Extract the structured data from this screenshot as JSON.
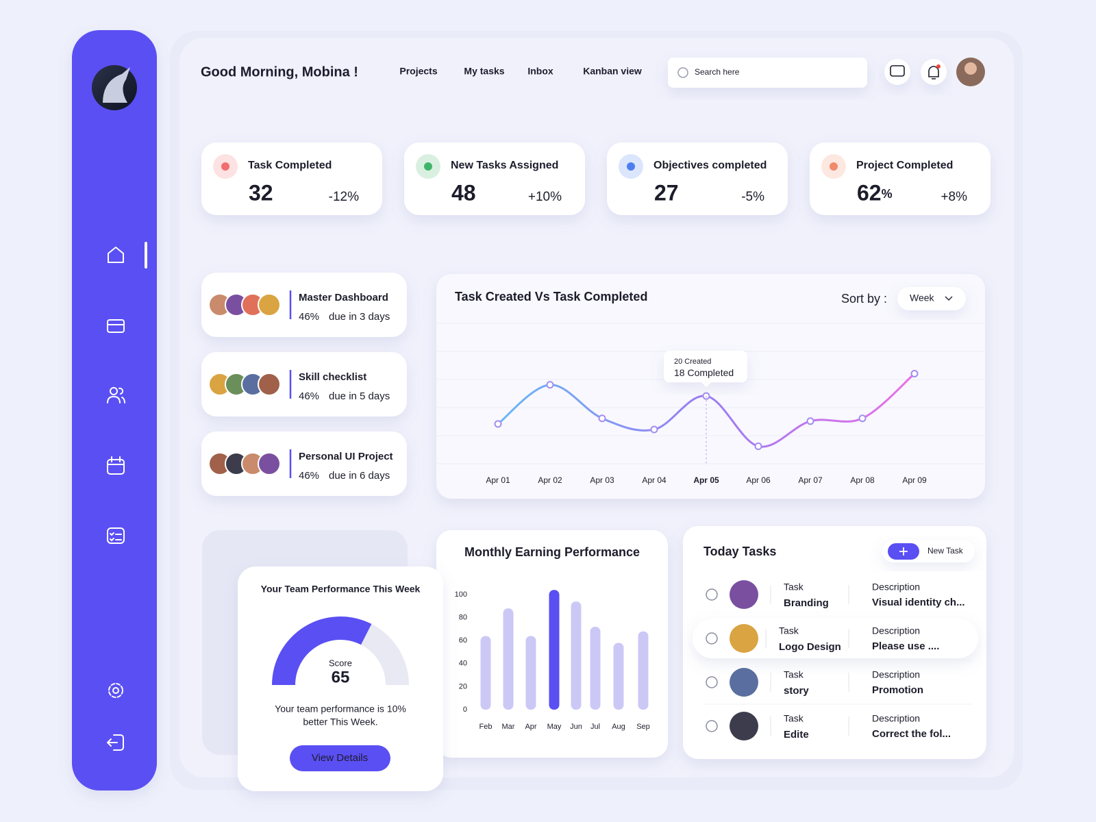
{
  "header": {
    "greeting": "Good Morning, Mobina !",
    "nav": [
      "Projects",
      "My tasks",
      "Inbox",
      "Kanban view"
    ],
    "search_placeholder": "Search here"
  },
  "stats": [
    {
      "title": "Task Completed",
      "value": 32,
      "change": "-12%",
      "color": "#f26d6d"
    },
    {
      "title": "New Tasks Assigned",
      "value": 48,
      "change": "+10%",
      "color": "#3fb56b"
    },
    {
      "title": "Objectives completed",
      "value": 27,
      "change": "-5%",
      "color": "#4d7ef0"
    },
    {
      "title": "Project Completed",
      "value": 62,
      "unit": "%",
      "change": "+8%",
      "color": "#f08a6a"
    }
  ],
  "projects": [
    {
      "name": "Master Dashboard",
      "progress": "46%",
      "due": "due in 3 days"
    },
    {
      "name": "Skill checklist",
      "progress": "46%",
      "due": "due in 5 days"
    },
    {
      "name": "Personal UI Project",
      "progress": "46%",
      "due": "due in 6 days"
    }
  ],
  "chart_data": [
    {
      "type": "line",
      "title": "Task Created Vs Task Completed",
      "sort_label": "Sort by :",
      "sort_value": "Week",
      "categories": [
        "Apr 01",
        "Apr 02",
        "Apr 03",
        "Apr 04",
        "Apr 05",
        "Apr 06",
        "Apr 07",
        "Apr 08",
        "Apr 09"
      ],
      "values": [
        13,
        20,
        14,
        12,
        18,
        9,
        13.5,
        14,
        22
      ],
      "ylim": [
        6,
        31
      ],
      "active": "Apr 05",
      "tooltip": {
        "created": "20 Created",
        "completed": "18 Completed"
      },
      "colors": [
        "#6ab8f4",
        "#9a7cf2",
        "#ea6fe6"
      ]
    },
    {
      "type": "bar",
      "title": "Monthly Earning Performance",
      "categories": [
        "Feb",
        "Mar",
        "Apr",
        "May",
        "Jun",
        "Jul",
        "Aug",
        "Sep"
      ],
      "values": [
        64,
        88,
        64,
        104,
        94,
        72,
        58,
        68
      ],
      "ylim": [
        0,
        110
      ],
      "yticks": [
        0,
        20,
        40,
        60,
        80,
        100
      ],
      "color": "#cbc8f6",
      "highlight": "May",
      "highlight_color": "#5a4ff3"
    },
    {
      "type": "gauge",
      "title": "Your Team Performance This Week",
      "label": "Score",
      "value": 65,
      "range": [
        0,
        100
      ],
      "note": [
        "Your team performance is 10%",
        "better This Week."
      ],
      "button": "View Details",
      "color": "#5a4ff3"
    }
  ],
  "today_tasks": {
    "title": "Today Tasks",
    "button": "New Task",
    "rows": [
      {
        "task_label": "Task",
        "task": "Branding",
        "description_label": "Description",
        "description": "Visual identity ch..."
      },
      {
        "task_label": "Task",
        "task": "Logo Design",
        "description_label": "Description",
        "description": "Please use ...."
      },
      {
        "task_label": "Task",
        "task": "story",
        "description_label": "Description",
        "description": "Promotion"
      },
      {
        "task_label": "Task",
        "task": "Edite",
        "description_label": "Description",
        "description": "Correct the fol..."
      }
    ]
  }
}
